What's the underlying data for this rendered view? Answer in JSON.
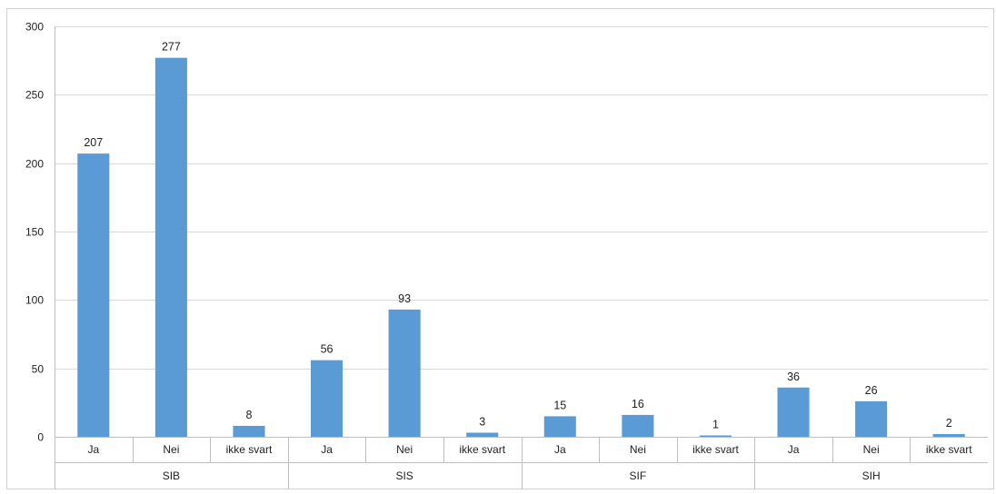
{
  "chart_data": {
    "type": "bar",
    "title": "",
    "xlabel": "",
    "ylabel": "",
    "ylim": [
      0,
      300
    ],
    "yticks": [
      0,
      50,
      100,
      150,
      200,
      250,
      300
    ],
    "grid": true,
    "legend": "none",
    "bar_color": "#5b9bd5",
    "groups": [
      {
        "label": "SIB",
        "categories": [
          "Ja",
          "Nei",
          "ikke svart"
        ],
        "values": [
          207,
          277,
          8
        ]
      },
      {
        "label": "SIS",
        "categories": [
          "Ja",
          "Nei",
          "ikke svart"
        ],
        "values": [
          56,
          93,
          3
        ]
      },
      {
        "label": "SIF",
        "categories": [
          "Ja",
          "Nei",
          "ikke svart"
        ],
        "values": [
          15,
          16,
          1
        ]
      },
      {
        "label": "SIH",
        "categories": [
          "Ja",
          "Nei",
          "ikke svart"
        ],
        "values": [
          36,
          26,
          2
        ]
      }
    ]
  }
}
